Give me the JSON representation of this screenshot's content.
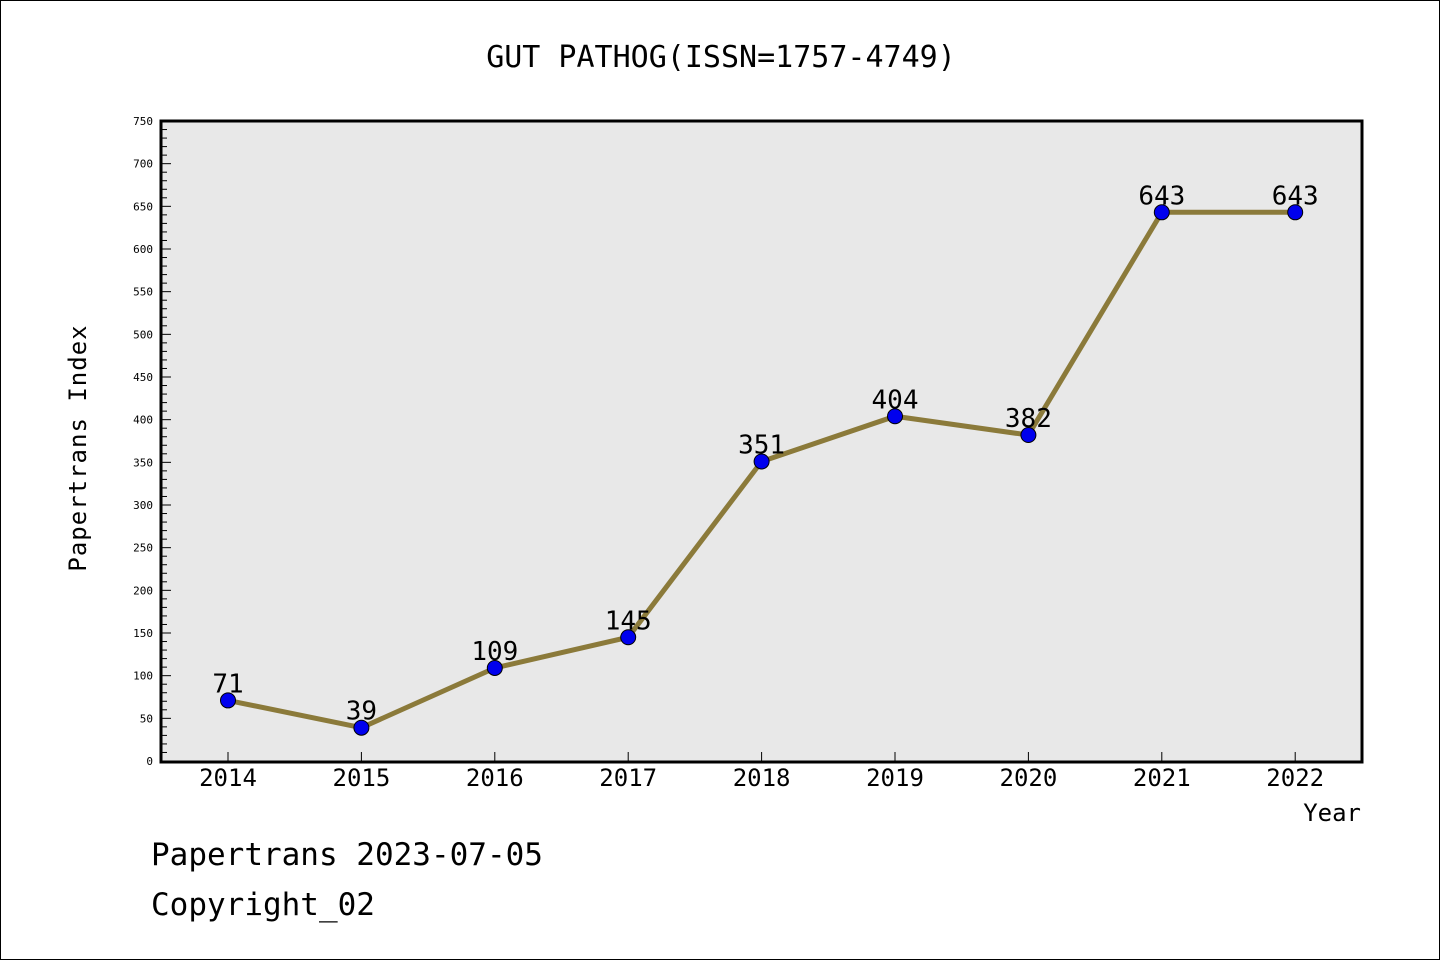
{
  "chart_data": {
    "type": "line",
    "title": "GUT PATHOG(ISSN=1757-4749)",
    "xlabel": "Year",
    "ylabel": "Papertrans Index",
    "categories": [
      "2014",
      "2015",
      "2016",
      "2017",
      "2018",
      "2019",
      "2020",
      "2021",
      "2022"
    ],
    "values": [
      71,
      39,
      109,
      145,
      351,
      404,
      382,
      643,
      643
    ],
    "ylim": [
      0,
      750
    ],
    "yticks": [
      0,
      50,
      100,
      150,
      200,
      250,
      300,
      350,
      400,
      450,
      500,
      550,
      600,
      650,
      700,
      750
    ],
    "grid": false,
    "line_color": "#8b7a3a",
    "marker_color": "#0000ee",
    "plot_background": "#e8e8e8"
  },
  "footer": {
    "line1": "Papertrans 2023-07-05",
    "line2": "Copyright_02"
  }
}
